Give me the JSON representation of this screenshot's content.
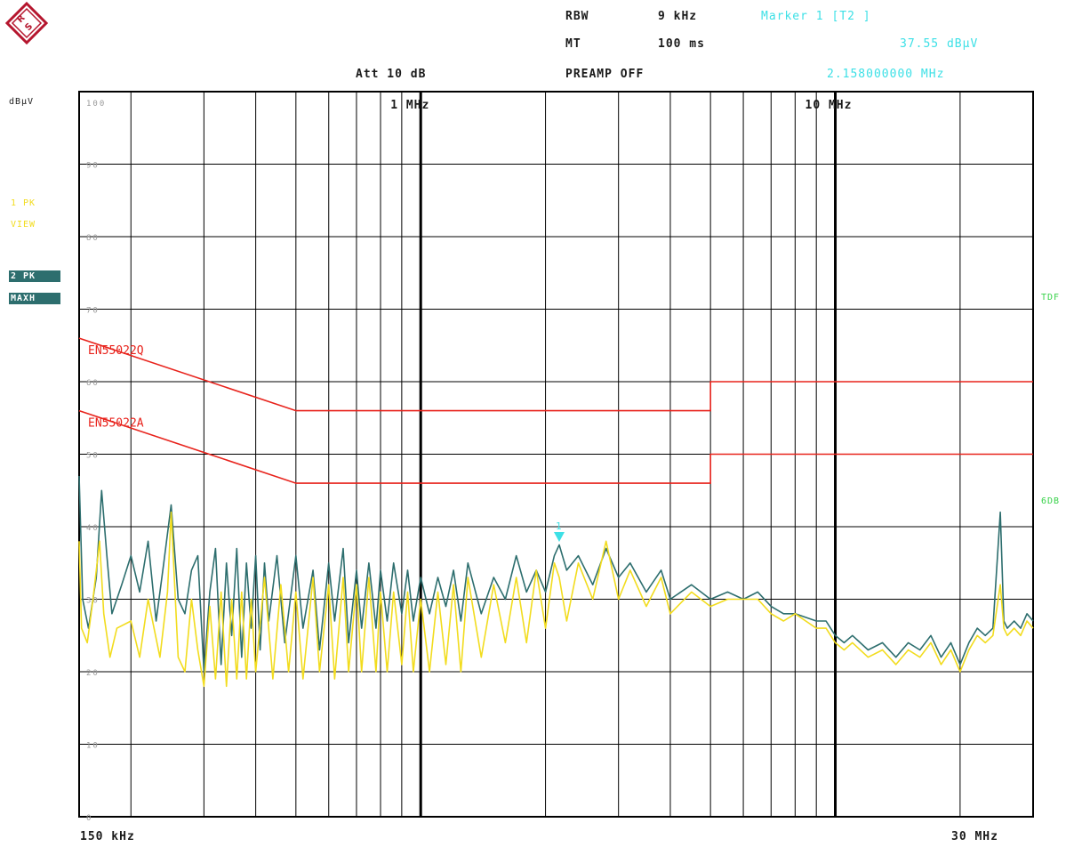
{
  "header": {
    "rbw_label": "RBW",
    "rbw_value": "9 kHz",
    "mt_label": "MT",
    "mt_value": "100 ms",
    "att": "Att 10 dB",
    "preamp": "PREAMP OFF",
    "marker_title": "Marker 1 [T2 ]",
    "marker_level": "37.55 dBµV",
    "marker_freq": "2.158000000 MHz"
  },
  "side": {
    "unit": "dBµV",
    "trace1_line1": "1 PK",
    "trace1_line2": "VIEW",
    "trace2_line1": "2 PK",
    "trace2_line2": "MAXH",
    "tdf": "TDF",
    "sixdb": "6DB"
  },
  "colors": {
    "trace1": "#f2dc1e",
    "trace2": "#2d6e6e",
    "limit": "#e8231c",
    "marker": "#3de0e6",
    "grid": "#000000",
    "logo": "#b5162e"
  },
  "chart_data": {
    "type": "line",
    "xscale": "log",
    "xlim": [
      0.15,
      30
    ],
    "ylim": [
      0,
      100
    ],
    "ylabel": "dBµV",
    "xstart_label": "150 kHz",
    "xend_label": "30 MHz",
    "decade_labels": [
      {
        "x": 1,
        "text": "1 MHz"
      },
      {
        "x": 10,
        "text": "10 MHz"
      }
    ],
    "ytick_labels": [
      "100",
      "90",
      "80",
      "70",
      "60",
      "50",
      "40",
      "30",
      "20",
      "10",
      "0"
    ],
    "limit_lines": [
      {
        "name": "EN55022Q",
        "points": [
          [
            0.15,
            66
          ],
          [
            0.5,
            56
          ],
          [
            5,
            56
          ],
          [
            5,
            60
          ],
          [
            30,
            60
          ]
        ]
      },
      {
        "name": "EN55022A",
        "points": [
          [
            0.15,
            56
          ],
          [
            0.5,
            46
          ],
          [
            5,
            46
          ],
          [
            5,
            50
          ],
          [
            30,
            50
          ]
        ]
      }
    ],
    "marker": {
      "label": "1",
      "x": 2.158,
      "y": 37.55
    },
    "series": [
      {
        "trace": "2 PK MAXH",
        "points": [
          [
            0.15,
            47
          ],
          [
            0.153,
            30
          ],
          [
            0.158,
            26
          ],
          [
            0.165,
            33
          ],
          [
            0.17,
            45
          ],
          [
            0.175,
            36
          ],
          [
            0.18,
            28
          ],
          [
            0.19,
            32
          ],
          [
            0.2,
            36
          ],
          [
            0.21,
            31
          ],
          [
            0.22,
            38
          ],
          [
            0.23,
            27
          ],
          [
            0.24,
            35
          ],
          [
            0.25,
            43
          ],
          [
            0.26,
            30
          ],
          [
            0.27,
            28
          ],
          [
            0.28,
            34
          ],
          [
            0.29,
            36
          ],
          [
            0.3,
            20
          ],
          [
            0.31,
            31
          ],
          [
            0.32,
            37
          ],
          [
            0.33,
            21
          ],
          [
            0.34,
            35
          ],
          [
            0.35,
            25
          ],
          [
            0.36,
            37
          ],
          [
            0.37,
            22
          ],
          [
            0.38,
            35
          ],
          [
            0.39,
            26
          ],
          [
            0.4,
            36
          ],
          [
            0.41,
            23
          ],
          [
            0.42,
            35
          ],
          [
            0.43,
            27
          ],
          [
            0.45,
            36
          ],
          [
            0.47,
            24
          ],
          [
            0.5,
            36
          ],
          [
            0.52,
            26
          ],
          [
            0.55,
            34
          ],
          [
            0.57,
            23
          ],
          [
            0.6,
            35
          ],
          [
            0.62,
            27
          ],
          [
            0.65,
            37
          ],
          [
            0.67,
            24
          ],
          [
            0.7,
            34
          ],
          [
            0.72,
            26
          ],
          [
            0.75,
            35
          ],
          [
            0.78,
            26
          ],
          [
            0.8,
            34
          ],
          [
            0.83,
            27
          ],
          [
            0.86,
            35
          ],
          [
            0.9,
            28
          ],
          [
            0.93,
            34
          ],
          [
            0.96,
            27
          ],
          [
            1.0,
            33
          ],
          [
            1.05,
            28
          ],
          [
            1.1,
            33
          ],
          [
            1.15,
            29
          ],
          [
            1.2,
            34
          ],
          [
            1.25,
            27
          ],
          [
            1.3,
            35
          ],
          [
            1.4,
            28
          ],
          [
            1.5,
            33
          ],
          [
            1.6,
            30
          ],
          [
            1.7,
            36
          ],
          [
            1.8,
            31
          ],
          [
            1.9,
            34
          ],
          [
            2.0,
            31
          ],
          [
            2.1,
            36
          ],
          [
            2.158,
            37.5
          ],
          [
            2.25,
            34
          ],
          [
            2.4,
            36
          ],
          [
            2.6,
            32
          ],
          [
            2.8,
            37
          ],
          [
            3.0,
            33
          ],
          [
            3.2,
            35
          ],
          [
            3.5,
            31
          ],
          [
            3.8,
            34
          ],
          [
            4.0,
            30
          ],
          [
            4.5,
            32
          ],
          [
            5.0,
            30
          ],
          [
            5.5,
            31
          ],
          [
            6.0,
            30
          ],
          [
            6.5,
            31
          ],
          [
            7.0,
            29
          ],
          [
            7.5,
            28
          ],
          [
            8.0,
            28
          ],
          [
            9.0,
            27
          ],
          [
            9.5,
            27
          ],
          [
            10.0,
            25
          ],
          [
            10.5,
            24
          ],
          [
            11.0,
            25
          ],
          [
            12.0,
            23
          ],
          [
            13.0,
            24
          ],
          [
            14.0,
            22
          ],
          [
            15.0,
            24
          ],
          [
            16.0,
            23
          ],
          [
            17.0,
            25
          ],
          [
            18.0,
            22
          ],
          [
            19.0,
            24
          ],
          [
            20.0,
            21
          ],
          [
            21.0,
            24
          ],
          [
            22.0,
            26
          ],
          [
            23.0,
            25
          ],
          [
            24.0,
            26
          ],
          [
            25.0,
            42
          ],
          [
            25.5,
            27
          ],
          [
            26.0,
            26
          ],
          [
            27.0,
            27
          ],
          [
            28.0,
            26
          ],
          [
            29.0,
            28
          ],
          [
            30.0,
            27
          ]
        ]
      },
      {
        "trace": "1 PK VIEW",
        "points": [
          [
            0.15,
            38
          ],
          [
            0.152,
            26
          ],
          [
            0.157,
            24
          ],
          [
            0.162,
            30
          ],
          [
            0.168,
            38
          ],
          [
            0.172,
            28
          ],
          [
            0.178,
            22
          ],
          [
            0.185,
            26
          ],
          [
            0.2,
            27
          ],
          [
            0.21,
            22
          ],
          [
            0.22,
            30
          ],
          [
            0.235,
            22
          ],
          [
            0.245,
            31
          ],
          [
            0.25,
            42
          ],
          [
            0.26,
            22
          ],
          [
            0.27,
            20
          ],
          [
            0.28,
            30
          ],
          [
            0.29,
            23
          ],
          [
            0.3,
            18
          ],
          [
            0.31,
            29
          ],
          [
            0.32,
            19
          ],
          [
            0.33,
            31
          ],
          [
            0.34,
            18
          ],
          [
            0.35,
            30
          ],
          [
            0.36,
            19
          ],
          [
            0.37,
            31
          ],
          [
            0.38,
            19
          ],
          [
            0.39,
            30
          ],
          [
            0.4,
            20
          ],
          [
            0.42,
            33
          ],
          [
            0.44,
            19
          ],
          [
            0.46,
            32
          ],
          [
            0.48,
            20
          ],
          [
            0.5,
            31
          ],
          [
            0.52,
            19
          ],
          [
            0.55,
            33
          ],
          [
            0.57,
            20
          ],
          [
            0.6,
            32
          ],
          [
            0.62,
            19
          ],
          [
            0.65,
            33
          ],
          [
            0.67,
            20
          ],
          [
            0.7,
            32
          ],
          [
            0.72,
            20
          ],
          [
            0.75,
            33
          ],
          [
            0.78,
            20
          ],
          [
            0.8,
            31
          ],
          [
            0.83,
            20
          ],
          [
            0.86,
            31
          ],
          [
            0.9,
            21
          ],
          [
            0.93,
            31
          ],
          [
            0.96,
            20
          ],
          [
            1.0,
            30
          ],
          [
            1.05,
            20
          ],
          [
            1.1,
            31
          ],
          [
            1.15,
            21
          ],
          [
            1.2,
            32
          ],
          [
            1.25,
            20
          ],
          [
            1.3,
            33
          ],
          [
            1.4,
            22
          ],
          [
            1.5,
            32
          ],
          [
            1.6,
            24
          ],
          [
            1.7,
            33
          ],
          [
            1.8,
            24
          ],
          [
            1.9,
            34
          ],
          [
            2.0,
            26
          ],
          [
            2.1,
            35
          ],
          [
            2.158,
            33
          ],
          [
            2.25,
            27
          ],
          [
            2.4,
            35
          ],
          [
            2.6,
            30
          ],
          [
            2.8,
            38
          ],
          [
            3.0,
            30
          ],
          [
            3.2,
            34
          ],
          [
            3.5,
            29
          ],
          [
            3.8,
            33
          ],
          [
            4.0,
            28
          ],
          [
            4.5,
            31
          ],
          [
            5.0,
            29
          ],
          [
            5.5,
            30
          ],
          [
            6.0,
            30
          ],
          [
            6.5,
            30
          ],
          [
            7.0,
            28
          ],
          [
            7.5,
            27
          ],
          [
            8.0,
            28
          ],
          [
            9.0,
            26
          ],
          [
            9.5,
            26
          ],
          [
            10.0,
            24
          ],
          [
            10.5,
            23
          ],
          [
            11.0,
            24
          ],
          [
            12.0,
            22
          ],
          [
            13.0,
            23
          ],
          [
            14.0,
            21
          ],
          [
            15.0,
            23
          ],
          [
            16.0,
            22
          ],
          [
            17.0,
            24
          ],
          [
            18.0,
            21
          ],
          [
            19.0,
            23
          ],
          [
            20.0,
            20
          ],
          [
            21.0,
            23
          ],
          [
            22.0,
            25
          ],
          [
            23.0,
            24
          ],
          [
            24.0,
            25
          ],
          [
            25.0,
            32
          ],
          [
            25.5,
            26
          ],
          [
            26.0,
            25
          ],
          [
            27.0,
            26
          ],
          [
            28.0,
            25
          ],
          [
            29.0,
            27
          ],
          [
            30.0,
            26
          ]
        ]
      }
    ]
  }
}
